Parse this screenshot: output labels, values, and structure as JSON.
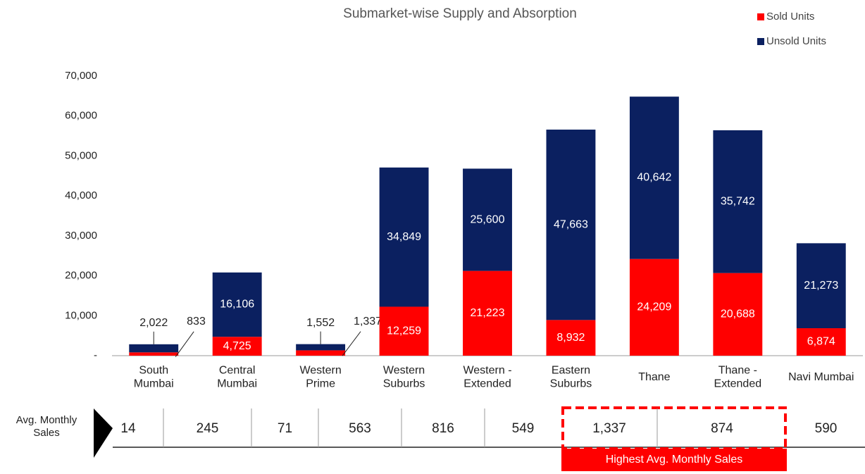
{
  "chart_data": {
    "type": "stacked_bar",
    "title": "Submarket-wise Supply and Absorption",
    "categories": [
      "South\nMumbai",
      "Central\nMumbai",
      "Western\nPrime",
      "Western\nSuburbs",
      "Western -\nExtended",
      "Eastern\nSuburbs",
      "Thane",
      "Thane -\nExtended",
      "Navi Mumbai"
    ],
    "series": [
      {
        "name": "Sold Units",
        "color": "#ff0000",
        "values": [
          833,
          4725,
          1337,
          12259,
          21223,
          8932,
          24209,
          20688,
          6874
        ],
        "value_labels": [
          "833",
          "4,725",
          "1,337",
          "12,259",
          "21,223",
          "8,932",
          "24,209",
          "20,688",
          "6,874"
        ]
      },
      {
        "name": "Unsold Units",
        "color": "#0b2060",
        "values": [
          2022,
          16106,
          1552,
          34849,
          25600,
          47663,
          40642,
          35742,
          21273
        ],
        "value_labels": [
          "2,022",
          "16,106",
          "1,552",
          "34,849",
          "25,600",
          "47,663",
          "40,642",
          "35,742",
          "21,273"
        ]
      }
    ],
    "ylim": [
      0,
      70000
    ],
    "yticks": [
      {
        "value": 0,
        "label": "-"
      },
      {
        "value": 10000,
        "label": "10,000"
      },
      {
        "value": 20000,
        "label": "20,000"
      },
      {
        "value": 30000,
        "label": "30,000"
      },
      {
        "value": 40000,
        "label": "40,000"
      },
      {
        "value": 50000,
        "label": "50,000"
      },
      {
        "value": 60000,
        "label": "60,000"
      },
      {
        "value": 70000,
        "label": "70,000"
      }
    ],
    "legend": "top-right"
  },
  "avg_monthly_sales": {
    "label": "Avg. Monthly\nSales",
    "values": [
      14,
      245,
      71,
      563,
      816,
      549,
      1337,
      874,
      590
    ],
    "value_labels": [
      "14",
      "245",
      "71",
      "563",
      "816",
      "549",
      "1,337",
      "874",
      "590"
    ],
    "annotation": "Highest Avg. Monthly Sales"
  }
}
